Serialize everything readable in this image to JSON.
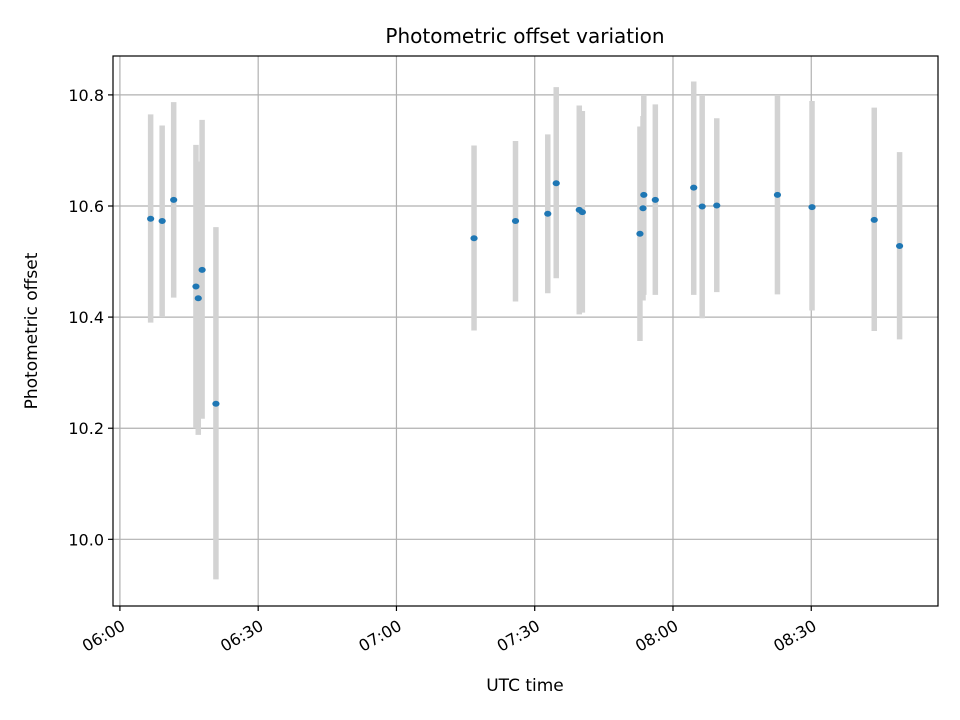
{
  "chart_data": {
    "type": "scatter",
    "title": "Photometric offset variation",
    "xlabel": "UTC time",
    "ylabel": "Photometric offset",
    "x_axis_type": "time",
    "xlim": [
      "05:58:30",
      "08:57:30"
    ],
    "ylim": [
      9.88,
      10.87
    ],
    "x_ticks": [
      "06:00",
      "06:30",
      "07:00",
      "07:30",
      "08:00",
      "08:30"
    ],
    "y_ticks": [
      10.0,
      10.2,
      10.4,
      10.6,
      10.8
    ],
    "grid": true,
    "point_color": "#1f77b4",
    "errorbar_color": "#d3d3d3",
    "points": [
      {
        "x": "06:06:40",
        "y": 10.577,
        "lo": 10.39,
        "hi": 10.765
      },
      {
        "x": "06:09:10",
        "y": 10.573,
        "lo": 10.4,
        "hi": 10.745
      },
      {
        "x": "06:11:40",
        "y": 10.611,
        "lo": 10.435,
        "hi": 10.787
      },
      {
        "x": "06:16:30",
        "y": 10.455,
        "lo": 10.2,
        "hi": 10.71
      },
      {
        "x": "06:17:00",
        "y": 10.434,
        "lo": 10.188,
        "hi": 10.68
      },
      {
        "x": "06:17:50",
        "y": 10.485,
        "lo": 10.217,
        "hi": 10.755
      },
      {
        "x": "06:20:50",
        "y": 10.244,
        "lo": 9.928,
        "hi": 10.562
      },
      {
        "x": "07:16:50",
        "y": 10.542,
        "lo": 10.376,
        "hi": 10.709
      },
      {
        "x": "07:25:50",
        "y": 10.573,
        "lo": 10.428,
        "hi": 10.717
      },
      {
        "x": "07:32:50",
        "y": 10.586,
        "lo": 10.443,
        "hi": 10.729
      },
      {
        "x": "07:34:40",
        "y": 10.641,
        "lo": 10.47,
        "hi": 10.814
      },
      {
        "x": "07:39:40",
        "y": 10.593,
        "lo": 10.405,
        "hi": 10.781
      },
      {
        "x": "07:40:20",
        "y": 10.589,
        "lo": 10.408,
        "hi": 10.771
      },
      {
        "x": "07:52:50",
        "y": 10.55,
        "lo": 10.357,
        "hi": 10.743
      },
      {
        "x": "07:53:30",
        "y": 10.596,
        "lo": 10.43,
        "hi": 10.762
      },
      {
        "x": "07:53:40",
        "y": 10.62,
        "lo": 10.44,
        "hi": 10.8
      },
      {
        "x": "07:56:10",
        "y": 10.611,
        "lo": 10.44,
        "hi": 10.783
      },
      {
        "x": "08:04:30",
        "y": 10.633,
        "lo": 10.44,
        "hi": 10.824
      },
      {
        "x": "08:06:20",
        "y": 10.599,
        "lo": 10.398,
        "hi": 10.8
      },
      {
        "x": "08:09:30",
        "y": 10.601,
        "lo": 10.445,
        "hi": 10.758
      },
      {
        "x": "08:22:40",
        "y": 10.62,
        "lo": 10.441,
        "hi": 10.8
      },
      {
        "x": "08:30:10",
        "y": 10.598,
        "lo": 10.412,
        "hi": 10.789
      },
      {
        "x": "08:43:40",
        "y": 10.575,
        "lo": 10.375,
        "hi": 10.777
      },
      {
        "x": "08:49:10",
        "y": 10.528,
        "lo": 10.36,
        "hi": 10.697
      }
    ]
  }
}
